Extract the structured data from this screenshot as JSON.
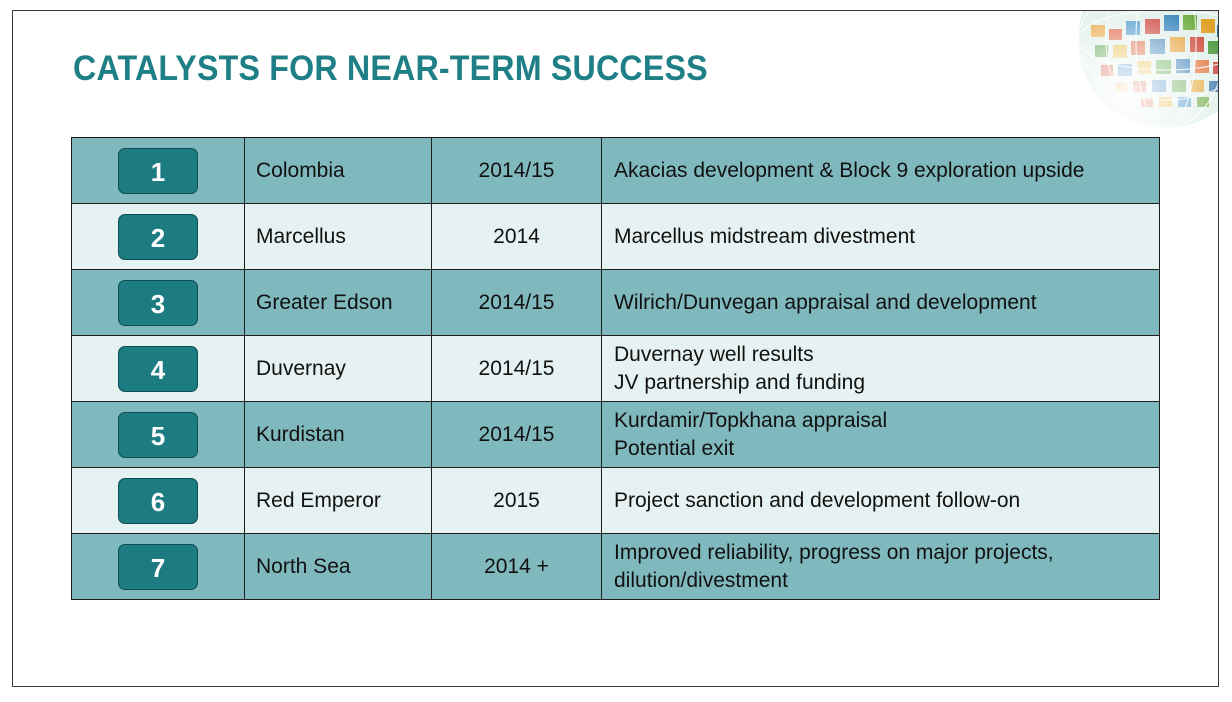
{
  "slide": {
    "title": "CATALYSTS FOR NEAR-TERM SUCCESS",
    "logo_icon": "globe-mosaic-icon"
  },
  "colors": {
    "title": "#1f7f86",
    "row_dark": "#80b9bd",
    "row_light": "#e6f1f1",
    "badge": "#1d7b82"
  },
  "catalysts": [
    {
      "number": "1",
      "region": "Colombia",
      "timing": "2014/15",
      "details": [
        "Akacias development & Block 9 exploration upside"
      ]
    },
    {
      "number": "2",
      "region": "Marcellus",
      "timing": "2014",
      "details": [
        "Marcellus midstream divestment"
      ]
    },
    {
      "number": "3",
      "region": "Greater Edson",
      "timing": "2014/15",
      "details": [
        "Wilrich/Dunvegan appraisal and development"
      ]
    },
    {
      "number": "4",
      "region": "Duvernay",
      "timing": "2014/15",
      "details": [
        "Duvernay well results",
        "JV partnership and funding"
      ]
    },
    {
      "number": "5",
      "region": "Kurdistan",
      "timing": "2014/15",
      "details": [
        "Kurdamir/Topkhana appraisal",
        "Potential exit"
      ]
    },
    {
      "number": "6",
      "region": "Red Emperor",
      "timing": "2015",
      "details": [
        "Project sanction and development follow-on"
      ]
    },
    {
      "number": "7",
      "region": "North Sea",
      "timing": "2014 +",
      "details": [
        "Improved reliability, progress on major projects,",
        "dilution/divestment"
      ]
    }
  ]
}
